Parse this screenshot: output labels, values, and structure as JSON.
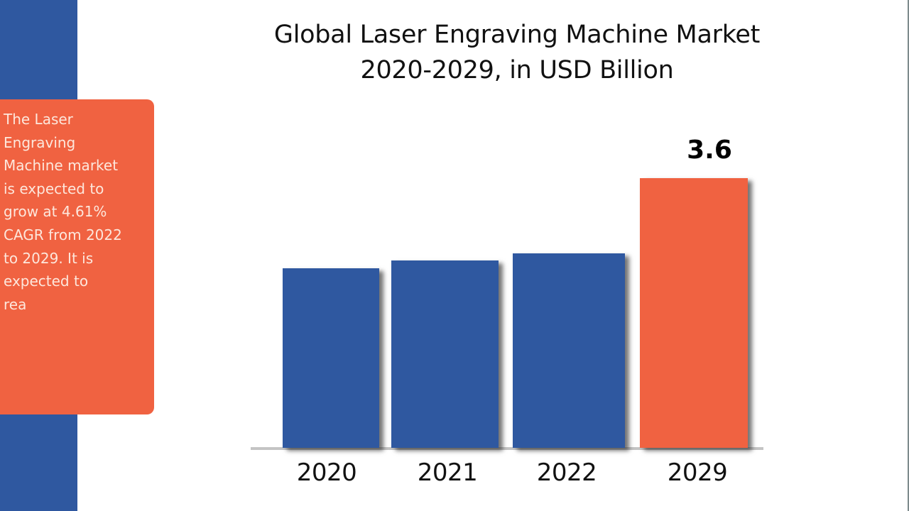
{
  "sidebar": {
    "strip_color": "#2f58a0",
    "panel_color": "#f06241",
    "panel_text": "The Laser Engraving Machine market is expected to grow at 4.61% CAGR from 2022 to 2029. It is expected to rea",
    "panel_lines": [
      "The Laser",
      "Engraving",
      "Machine market",
      "is expected to",
      "grow at 4.61%",
      "CAGR from 2022",
      "to 2029. It is",
      "expected to",
      "rea"
    ]
  },
  "title": {
    "line1": "Global Laser Engraving Machine Market",
    "line2": "2020-2029, in USD Billion"
  },
  "chart_data": {
    "type": "bar",
    "title": "Global Laser Engraving Machine Market 2020-2029, in USD Billion",
    "xlabel": "",
    "ylabel": "USD Billion",
    "categories": [
      "2020",
      "2021",
      "2022",
      "2029"
    ],
    "values": [
      2.4,
      2.5,
      2.6,
      3.6
    ],
    "data_labels": [
      "",
      "",
      "",
      "3.6"
    ],
    "colors": [
      "#2f58a0",
      "#2f58a0",
      "#2f58a0",
      "#f06241"
    ],
    "ylim": [
      0,
      4
    ],
    "grid": false,
    "legend": "none",
    "annotations": [
      "Laser Engraving Machine market expected to grow at 4.61% CAGR from 2022 to 2029"
    ]
  }
}
